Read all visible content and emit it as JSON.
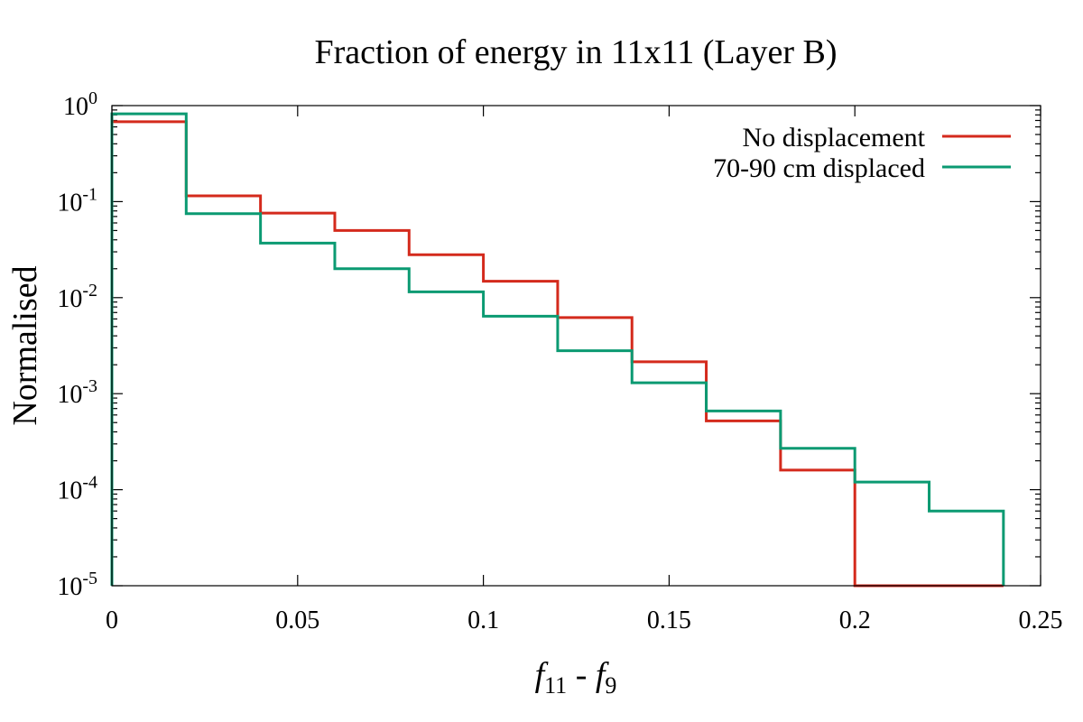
{
  "chart_data": {
    "type": "line",
    "subtype": "step-histogram",
    "title": "Fraction of energy in 11x11 (Layer B)",
    "xlabel": "f11 - f9",
    "xlabel_parts": {
      "f1": "f",
      "sub1": "11",
      "minus": " - ",
      "f2": "f",
      "sub2": "9"
    },
    "ylabel": "Normalised",
    "xlim": [
      0,
      0.25
    ],
    "ylim": [
      1e-05,
      1
    ],
    "yscale": "log",
    "x_ticks": [
      {
        "value": 0,
        "label": "0"
      },
      {
        "value": 0.05,
        "label": "0.05"
      },
      {
        "value": 0.1,
        "label": "0.1"
      },
      {
        "value": 0.15,
        "label": "0.15"
      },
      {
        "value": 0.2,
        "label": "0.2"
      },
      {
        "value": 0.25,
        "label": "0.25"
      }
    ],
    "y_ticks": [
      {
        "value": 1e-05,
        "base": "10",
        "exp": "-5"
      },
      {
        "value": 0.0001,
        "base": "10",
        "exp": "-4"
      },
      {
        "value": 0.001,
        "base": "10",
        "exp": "-3"
      },
      {
        "value": 0.01,
        "base": "10",
        "exp": "-2"
      },
      {
        "value": 0.1,
        "base": "10",
        "exp": "-1"
      },
      {
        "value": 1,
        "base": "10",
        "exp": "0"
      }
    ],
    "bin_edges": [
      0,
      0.02,
      0.04,
      0.06,
      0.08,
      0.1,
      0.12,
      0.14,
      0.16,
      0.18,
      0.2,
      0.22,
      0.24
    ],
    "series": [
      {
        "name": "No displacement",
        "color": "#d42a1c",
        "values": [
          0.68,
          0.115,
          0.076,
          0.05,
          0.028,
          0.0148,
          0.0062,
          0.00215,
          0.00052,
          0.00016,
          0,
          0
        ]
      },
      {
        "name": "70-90 cm displaced",
        "color": "#0b9a72",
        "values": [
          0.82,
          0.075,
          0.037,
          0.02,
          0.0115,
          0.0064,
          0.0028,
          0.0013,
          0.00066,
          0.00027,
          0.00012,
          6e-05
        ]
      }
    ],
    "legend_position": "top-right",
    "grid": false
  }
}
